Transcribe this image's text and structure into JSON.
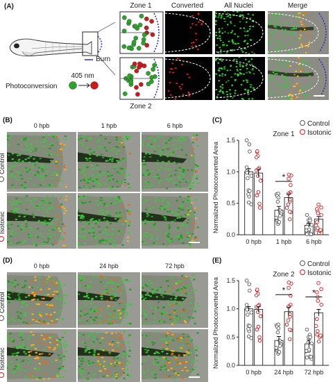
{
  "panel_a": {
    "letter": "(A)",
    "burn_label": "Burn",
    "photoconversion_label": "Photoconversion",
    "wavelength": "405 nm",
    "arrow": "→",
    "zone1_title": "Zone 1",
    "zone2_title": "Zone 2",
    "col_converted": "Converted",
    "col_all_nuclei": "All Nuclei",
    "col_merge": "Merge"
  },
  "panel_b": {
    "letter": "(B)",
    "timepoints": [
      "0 hpb",
      "1 hpb",
      "6 hpb"
    ],
    "row_control": "Control",
    "row_isotonic": "Isotonic"
  },
  "panel_d": {
    "letter": "(D)",
    "timepoints": [
      "0 hpb",
      "24 hpb",
      "72 hpb"
    ],
    "row_control": "Control",
    "row_isotonic": "Isotonic"
  },
  "panel_c": {
    "letter": "(C)",
    "legend_control": "Control",
    "legend_isotonic": "Isotonic"
  },
  "panel_e": {
    "letter": "(E)",
    "legend_control": "Control",
    "legend_isotonic": "Isotonic"
  },
  "colors": {
    "control": "#555555",
    "isotonic": "#d7191c",
    "burn": "#2431c9",
    "green_cell": "#2aa52a",
    "red_cell": "#cc1a1a"
  },
  "chart_data": [
    {
      "type": "bar",
      "title": "Zone 1",
      "ylabel": "Normalized Photoconverted Area",
      "categories": [
        "0 hpb",
        "1 hpb",
        "6 hpb"
      ],
      "ylim": [
        0,
        1.5
      ],
      "yticks": [
        "0.0",
        "0.5",
        "1.0",
        "1.5"
      ],
      "series": [
        {
          "name": "Control",
          "values": [
            1.0,
            0.39,
            0.15
          ],
          "errors": [
            0.05,
            0.06,
            0.03
          ]
        },
        {
          "name": "Isotonic",
          "values": [
            0.98,
            0.59,
            0.25
          ],
          "errors": [
            0.06,
            0.06,
            0.04
          ]
        }
      ],
      "significance": [
        {
          "category": "1 hpb",
          "label": "*"
        }
      ]
    },
    {
      "type": "bar",
      "title": "Zone 2",
      "ylabel": "Normalized Photoconverted Area",
      "categories": [
        "0 hpb",
        "24 hpb",
        "72 hpb"
      ],
      "ylim": [
        0,
        1.5
      ],
      "yticks": [
        "0.0",
        "0.5",
        "1.0",
        "1.5"
      ],
      "series": [
        {
          "name": "Control",
          "values": [
            1.0,
            0.44,
            0.38
          ],
          "errors": [
            0.04,
            0.07,
            0.07
          ]
        },
        {
          "name": "Isotonic",
          "values": [
            0.99,
            0.95,
            0.93
          ],
          "errors": [
            0.05,
            0.08,
            0.06
          ]
        }
      ],
      "significance": [
        {
          "category": "24 hpb",
          "label": "*"
        },
        {
          "category": "72 hpb",
          "label": "*"
        }
      ]
    }
  ]
}
